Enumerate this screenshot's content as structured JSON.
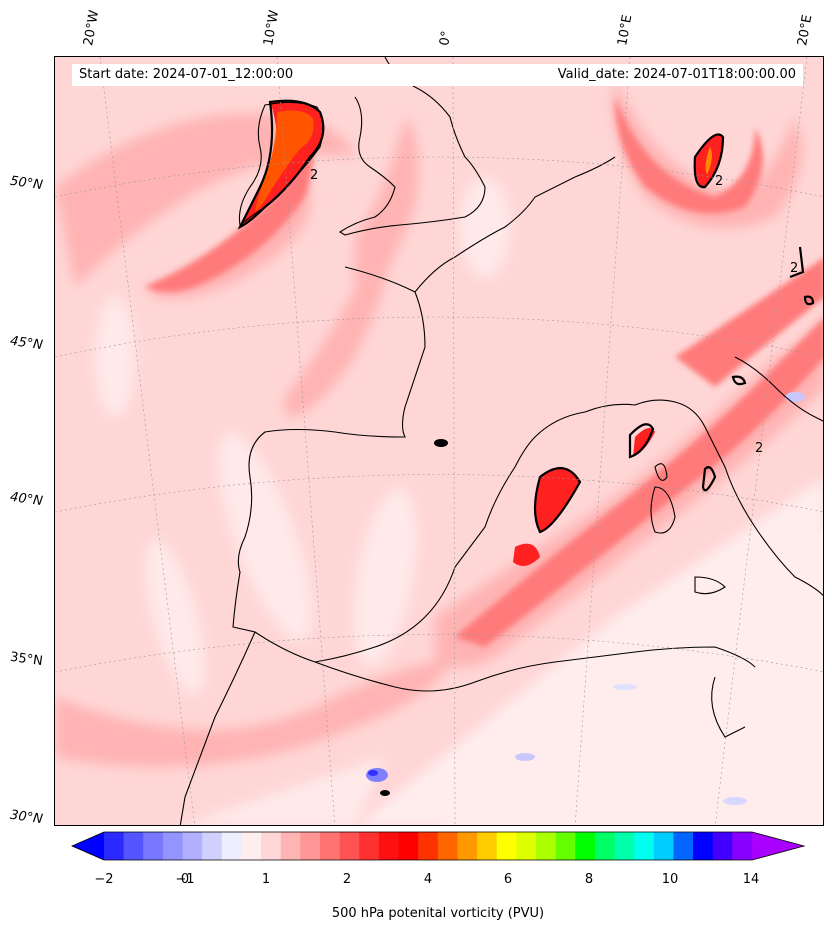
{
  "header": {
    "start_date": "Start date: 2024-07-01_12:00:00",
    "valid_date": "Valid_date: 2024-07-01T18:00:00.00"
  },
  "lon_labels": [
    "20°W",
    "10°W",
    "0°",
    "10°E",
    "20°E"
  ],
  "lat_labels": [
    "50°N",
    "45°N",
    "40°N",
    "35°N",
    "30°N"
  ],
  "colorbar": {
    "label": "500 hPa potenital vorticity (PVU)",
    "ticks": [
      "−2",
      "−1",
      "0",
      "1",
      "2",
      "4",
      "6",
      "8",
      "10",
      "14"
    ],
    "colors": [
      "#0000ff",
      "#2a2aff",
      "#5555ff",
      "#7777ff",
      "#9494ff",
      "#b0b0ff",
      "#d0d0ff",
      "#eeeeff",
      "#ffeeee",
      "#ffd7d7",
      "#ffb4b4",
      "#ff9595",
      "#ff7373",
      "#ff5252",
      "#ff3030",
      "#ff1010",
      "#ff0000",
      "#ff3300",
      "#ff6600",
      "#ff9900",
      "#ffcc00",
      "#ffff00",
      "#ddff00",
      "#aaff00",
      "#66ff00",
      "#00ff00",
      "#00ff66",
      "#00ffaa",
      "#00ffee",
      "#00ccff",
      "#0066ff",
      "#0000ff",
      "#4400ff",
      "#8800ff",
      "#aa00ff"
    ]
  },
  "contour_label": "2"
}
